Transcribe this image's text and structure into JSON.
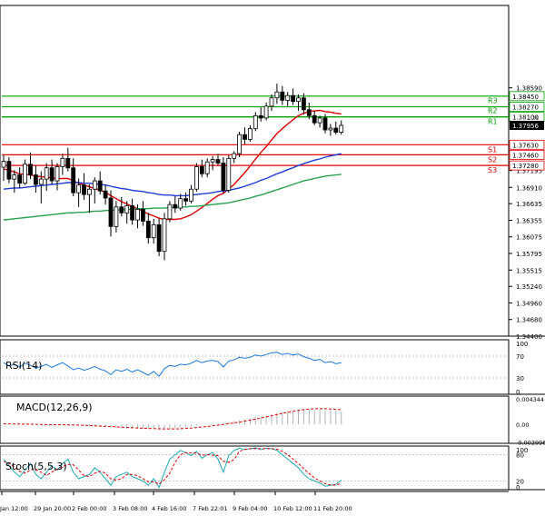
{
  "chart_data": {
    "type": "candlestick",
    "title": "",
    "x_labels": [
      "Jan 12:00",
      "29 Jan 20:00",
      "2 Feb 00:00",
      "3 Feb 08:00",
      "4 Feb 16:00",
      "7 Feb 22:01",
      "9 Feb 04:00",
      "10 Feb 12:00",
      "11 Feb 20:00"
    ],
    "price_axis": {
      "ylim": [
        1.344,
        1.3998
      ],
      "ticks": [
        "1.38590",
        "1.38310",
        "1.37195",
        "1.36910",
        "1.36635",
        "1.36355",
        "1.36075",
        "1.35795",
        "1.35515",
        "1.35240",
        "1.34960",
        "1.34680",
        "1.34400"
      ],
      "tick_values": [
        1.3859,
        1.3831,
        1.37195,
        1.3691,
        1.36635,
        1.36355,
        1.36075,
        1.35795,
        1.35515,
        1.3524,
        1.3496,
        1.3468,
        1.344
      ],
      "current_price": "1.37956",
      "partial_label": "1.38"
    },
    "levels": [
      {
        "name": "R3",
        "value": 1.3827,
        "label": "1.38270",
        "color": "#00a000"
      },
      {
        "name": "R2",
        "value": 1.381,
        "label": "1.38100",
        "color": "#00a000"
      },
      {
        "name": "R1",
        "value": 1.381,
        "label": "",
        "color": "#00a000"
      },
      {
        "name": "S1",
        "value": 1.3763,
        "label": "1.37630",
        "color": "#e00000"
      },
      {
        "name": "S2",
        "value": 1.3746,
        "label": "1.37460",
        "color": "#e00000"
      },
      {
        "name": "S3",
        "value": 1.3728,
        "label": "1.37280",
        "color": "#e00000"
      }
    ],
    "extra_line": {
      "value": 1.3845,
      "label": "1.38450",
      "color": "#00a000"
    },
    "candles": [
      {
        "o": 1.3725,
        "h": 1.3745,
        "l": 1.3702,
        "c": 1.3735
      },
      {
        "o": 1.3735,
        "h": 1.3742,
        "l": 1.3698,
        "c": 1.3705
      },
      {
        "o": 1.3705,
        "h": 1.372,
        "l": 1.3682,
        "c": 1.3712
      },
      {
        "o": 1.3712,
        "h": 1.3725,
        "l": 1.369,
        "c": 1.3698
      },
      {
        "o": 1.3698,
        "h": 1.3738,
        "l": 1.3695,
        "c": 1.373
      },
      {
        "o": 1.373,
        "h": 1.375,
        "l": 1.3705,
        "c": 1.3712
      },
      {
        "o": 1.3712,
        "h": 1.3728,
        "l": 1.3682,
        "c": 1.3696
      },
      {
        "o": 1.3696,
        "h": 1.3718,
        "l": 1.3664,
        "c": 1.3705
      },
      {
        "o": 1.3705,
        "h": 1.3732,
        "l": 1.3685,
        "c": 1.3724
      },
      {
        "o": 1.3724,
        "h": 1.3738,
        "l": 1.3696,
        "c": 1.3702
      },
      {
        "o": 1.3702,
        "h": 1.3732,
        "l": 1.3686,
        "c": 1.3726
      },
      {
        "o": 1.3726,
        "h": 1.3748,
        "l": 1.3712,
        "c": 1.374
      },
      {
        "o": 1.374,
        "h": 1.3758,
        "l": 1.3718,
        "c": 1.3724
      },
      {
        "o": 1.3724,
        "h": 1.374,
        "l": 1.3676,
        "c": 1.3682
      },
      {
        "o": 1.3682,
        "h": 1.3706,
        "l": 1.3658,
        "c": 1.3695
      },
      {
        "o": 1.3695,
        "h": 1.3715,
        "l": 1.367,
        "c": 1.3679
      },
      {
        "o": 1.3679,
        "h": 1.3696,
        "l": 1.3648,
        "c": 1.3688
      },
      {
        "o": 1.3688,
        "h": 1.3708,
        "l": 1.3664,
        "c": 1.3702
      },
      {
        "o": 1.3702,
        "h": 1.3718,
        "l": 1.3679,
        "c": 1.3685
      },
      {
        "o": 1.3685,
        "h": 1.3696,
        "l": 1.3662,
        "c": 1.3673
      },
      {
        "o": 1.3673,
        "h": 1.3686,
        "l": 1.3608,
        "c": 1.3625
      },
      {
        "o": 1.3625,
        "h": 1.3668,
        "l": 1.3615,
        "c": 1.3658
      },
      {
        "o": 1.3658,
        "h": 1.3675,
        "l": 1.3642,
        "c": 1.3648
      },
      {
        "o": 1.3648,
        "h": 1.3668,
        "l": 1.363,
        "c": 1.366
      },
      {
        "o": 1.366,
        "h": 1.3672,
        "l": 1.3628,
        "c": 1.3636
      },
      {
        "o": 1.3636,
        "h": 1.3662,
        "l": 1.3622,
        "c": 1.3654
      },
      {
        "o": 1.3654,
        "h": 1.3668,
        "l": 1.3626,
        "c": 1.3634
      },
      {
        "o": 1.3634,
        "h": 1.3648,
        "l": 1.3596,
        "c": 1.3606
      },
      {
        "o": 1.3606,
        "h": 1.3638,
        "l": 1.3596,
        "c": 1.3628
      },
      {
        "o": 1.3628,
        "h": 1.3638,
        "l": 1.3575,
        "c": 1.3583
      },
      {
        "o": 1.3583,
        "h": 1.3648,
        "l": 1.3568,
        "c": 1.3638
      },
      {
        "o": 1.3638,
        "h": 1.3668,
        "l": 1.3632,
        "c": 1.3662
      },
      {
        "o": 1.3662,
        "h": 1.3676,
        "l": 1.3648,
        "c": 1.3656
      },
      {
        "o": 1.3656,
        "h": 1.368,
        "l": 1.3652,
        "c": 1.3672
      },
      {
        "o": 1.3672,
        "h": 1.3682,
        "l": 1.366,
        "c": 1.3668
      },
      {
        "o": 1.3668,
        "h": 1.3695,
        "l": 1.3664,
        "c": 1.3688
      },
      {
        "o": 1.3688,
        "h": 1.3732,
        "l": 1.3684,
        "c": 1.3726
      },
      {
        "o": 1.3726,
        "h": 1.3738,
        "l": 1.3708,
        "c": 1.3714
      },
      {
        "o": 1.3714,
        "h": 1.374,
        "l": 1.3708,
        "c": 1.3734
      },
      {
        "o": 1.3734,
        "h": 1.3744,
        "l": 1.372,
        "c": 1.3738
      },
      {
        "o": 1.3738,
        "h": 1.3748,
        "l": 1.3728,
        "c": 1.3732
      },
      {
        "o": 1.3732,
        "h": 1.3742,
        "l": 1.368,
        "c": 1.3686
      },
      {
        "o": 1.3686,
        "h": 1.3745,
        "l": 1.3682,
        "c": 1.374
      },
      {
        "o": 1.374,
        "h": 1.3752,
        "l": 1.3732,
        "c": 1.3748
      },
      {
        "o": 1.3748,
        "h": 1.3785,
        "l": 1.3742,
        "c": 1.378
      },
      {
        "o": 1.378,
        "h": 1.3792,
        "l": 1.3764,
        "c": 1.3772
      },
      {
        "o": 1.3772,
        "h": 1.3796,
        "l": 1.3768,
        "c": 1.379
      },
      {
        "o": 1.379,
        "h": 1.3818,
        "l": 1.3786,
        "c": 1.3812
      },
      {
        "o": 1.3812,
        "h": 1.3826,
        "l": 1.3802,
        "c": 1.3808
      },
      {
        "o": 1.3808,
        "h": 1.3834,
        "l": 1.3804,
        "c": 1.3828
      },
      {
        "o": 1.3828,
        "h": 1.3848,
        "l": 1.382,
        "c": 1.3842
      },
      {
        "o": 1.3842,
        "h": 1.3866,
        "l": 1.3832,
        "c": 1.3852
      },
      {
        "o": 1.3852,
        "h": 1.3862,
        "l": 1.383,
        "c": 1.3838
      },
      {
        "o": 1.3838,
        "h": 1.3852,
        "l": 1.3828,
        "c": 1.3846
      },
      {
        "o": 1.3846,
        "h": 1.3858,
        "l": 1.383,
        "c": 1.3836
      },
      {
        "o": 1.3836,
        "h": 1.3848,
        "l": 1.382,
        "c": 1.3842
      },
      {
        "o": 1.3842,
        "h": 1.385,
        "l": 1.3814,
        "c": 1.3822
      },
      {
        "o": 1.3822,
        "h": 1.3834,
        "l": 1.3806,
        "c": 1.3812
      },
      {
        "o": 1.3812,
        "h": 1.382,
        "l": 1.3796,
        "c": 1.38
      },
      {
        "o": 1.38,
        "h": 1.3812,
        "l": 1.3792,
        "c": 1.3808
      },
      {
        "o": 1.3808,
        "h": 1.3815,
        "l": 1.3782,
        "c": 1.3788
      },
      {
        "o": 1.3788,
        "h": 1.3798,
        "l": 1.3778,
        "c": 1.3791
      },
      {
        "o": 1.3791,
        "h": 1.3802,
        "l": 1.378,
        "c": 1.3784
      },
      {
        "o": 1.3784,
        "h": 1.3804,
        "l": 1.378,
        "c": 1.37956
      }
    ],
    "moving_averages": [
      {
        "name": "MA-fast",
        "color": "#e00000",
        "values": [
          1.3722,
          1.372,
          1.3717,
          1.3714,
          1.3713,
          1.3712,
          1.371,
          1.3709,
          1.3708,
          1.3707,
          1.3706,
          1.3706,
          1.3706,
          1.3702,
          1.3698,
          1.3695,
          1.3692,
          1.3689,
          1.3686,
          1.3683,
          1.3677,
          1.3672,
          1.3667,
          1.3663,
          1.3659,
          1.3655,
          1.3651,
          1.3646,
          1.3643,
          1.3639,
          1.3637,
          1.3637,
          1.3637,
          1.3638,
          1.3641,
          1.3645,
          1.3651,
          1.3657,
          1.3664,
          1.3671,
          1.3677,
          1.3681,
          1.3688,
          1.3696,
          1.3706,
          1.3716,
          1.3727,
          1.3739,
          1.375,
          1.376,
          1.3771,
          1.3782,
          1.379,
          1.3798,
          1.3805,
          1.3812,
          1.3816,
          1.3819,
          1.382,
          1.3821,
          1.3819,
          1.3818,
          1.3816,
          1.3815
        ]
      },
      {
        "name": "MA-mid",
        "color": "#1e3cdc",
        "values": [
          1.3688,
          1.3689,
          1.369,
          1.369,
          1.3691,
          1.3692,
          1.3693,
          1.3694,
          1.3695,
          1.3696,
          1.3697,
          1.3698,
          1.3699,
          1.3699,
          1.3699,
          1.3698,
          1.3698,
          1.3697,
          1.3696,
          1.3695,
          1.3693,
          1.3691,
          1.3689,
          1.3688,
          1.3686,
          1.3685,
          1.3684,
          1.3682,
          1.3681,
          1.3679,
          1.3678,
          1.3678,
          1.3677,
          1.3677,
          1.3677,
          1.3678,
          1.3679,
          1.368,
          1.3681,
          1.3682,
          1.3684,
          1.3685,
          1.3686,
          1.3688,
          1.369,
          1.3693,
          1.3696,
          1.3699,
          1.3703,
          1.3706,
          1.371,
          1.3714,
          1.3717,
          1.3721,
          1.3724,
          1.3728,
          1.3731,
          1.3734,
          1.3737,
          1.3739,
          1.3742,
          1.3744,
          1.3746,
          1.3748
        ]
      },
      {
        "name": "MA-slow",
        "color": "#28a050",
        "values": [
          1.3636,
          1.3637,
          1.3638,
          1.3639,
          1.364,
          1.3641,
          1.3642,
          1.3643,
          1.3644,
          1.3645,
          1.3646,
          1.3647,
          1.3648,
          1.3648,
          1.3649,
          1.3649,
          1.365,
          1.3651,
          1.3651,
          1.3652,
          1.3652,
          1.3653,
          1.3653,
          1.3654,
          1.3654,
          1.3655,
          1.3655,
          1.3655,
          1.3656,
          1.3656,
          1.3656,
          1.3657,
          1.3657,
          1.3658,
          1.3658,
          1.3659,
          1.3659,
          1.366,
          1.3661,
          1.3662,
          1.3663,
          1.3664,
          1.3665,
          1.3667,
          1.3669,
          1.3671,
          1.3673,
          1.3676,
          1.3678,
          1.3681,
          1.3684,
          1.3687,
          1.369,
          1.3693,
          1.3696,
          1.3699,
          1.3702,
          1.3704,
          1.3706,
          1.3708,
          1.371,
          1.3711,
          1.3712,
          1.3713
        ]
      }
    ],
    "indicators": {
      "rsi": {
        "label": "RSI(14)",
        "ylim": [
          0,
          100
        ],
        "ticks": [
          "100",
          "70",
          "30",
          "0"
        ],
        "tick_values": [
          100,
          70,
          30,
          0
        ],
        "color": "#1e78dc",
        "values": [
          58,
          52,
          55,
          50,
          57,
          53,
          48,
          51,
          55,
          49,
          54,
          58,
          52,
          45,
          48,
          44,
          47,
          51,
          46,
          43,
          36,
          45,
          42,
          46,
          41,
          45,
          40,
          35,
          42,
          33,
          47,
          53,
          51,
          55,
          54,
          57,
          62,
          58,
          61,
          62,
          60,
          50,
          61,
          63,
          68,
          66,
          68,
          72,
          70,
          73,
          76,
          77,
          73,
          75,
          72,
          74,
          69,
          66,
          62,
          64,
          58,
          60,
          56,
          58
        ]
      },
      "macd": {
        "label": "MACD(12,26,9)",
        "ylim": [
          -0.0032,
          0.0048
        ],
        "ticks": [
          "0.004344",
          "0.00",
          "-0.002996"
        ],
        "tick_values": [
          0.004344,
          0.0,
          -0.002996
        ],
        "histogram_color": "#b4b4b4",
        "signal_color": "#e00000",
        "histogram": [
          0.0002,
          0.00015,
          0.0001,
          5e-05,
          6e-05,
          5e-05,
          0.0,
          -3e-05,
          -2e-05,
          -5e-05,
          -4e-05,
          -2e-05,
          -3e-05,
          -0.0001,
          -0.00018,
          -0.00024,
          -0.0003,
          -0.00032,
          -0.00036,
          -0.0004,
          -0.0005,
          -0.00055,
          -0.0006,
          -0.00064,
          -0.00068,
          -0.0007,
          -0.00072,
          -0.00078,
          -0.0008,
          -0.00085,
          -0.00082,
          -0.00074,
          -0.00066,
          -0.00056,
          -0.00046,
          -0.00034,
          -0.0002,
          -0.0001,
          2e-05,
          0.00014,
          0.00024,
          0.0003,
          0.00042,
          0.00056,
          0.00072,
          0.00088,
          0.00104,
          0.00122,
          0.0014,
          0.00158,
          0.00178,
          0.00198,
          0.00212,
          0.00226,
          0.00236,
          0.00246,
          0.0025,
          0.00252,
          0.00252,
          0.0025,
          0.00244,
          0.00238,
          0.0023,
          0.00224
        ],
        "signal": [
          0.0001,
          0.0001,
          8e-05,
          6e-05,
          5e-05,
          4e-05,
          2e-05,
          0.0,
          -2e-05,
          -4e-05,
          -5e-05,
          -6e-05,
          -7e-05,
          -9e-05,
          -0.00012,
          -0.00016,
          -0.0002,
          -0.00024,
          -0.00028,
          -0.00032,
          -0.00037,
          -0.00042,
          -0.00047,
          -0.00052,
          -0.00056,
          -0.0006,
          -0.00064,
          -0.00068,
          -0.00071,
          -0.00074,
          -0.00076,
          -0.00076,
          -0.00075,
          -0.00072,
          -0.00067,
          -0.00061,
          -0.00053,
          -0.00044,
          -0.00034,
          -0.00023,
          -0.00012,
          0.0,
          0.00012,
          0.00026,
          0.0004,
          0.00056,
          0.00072,
          0.0009,
          0.00108,
          0.00126,
          0.00146,
          0.00166,
          0.00186,
          0.00204,
          0.00222,
          0.00238,
          0.0025,
          0.0026,
          0.00266,
          0.00268,
          0.00266,
          0.00262,
          0.00256,
          0.0025
        ]
      },
      "stochastic": {
        "label": "Stoch(5,5,3)",
        "ylim": [
          0,
          100
        ],
        "ticks": [
          "100",
          "80",
          "20",
          "0"
        ],
        "tick_values": [
          100,
          80,
          20,
          0
        ],
        "k_color": "#1eaab4",
        "d_color": "#e00000",
        "k": [
          70,
          55,
          40,
          30,
          45,
          60,
          35,
          25,
          40,
          55,
          45,
          60,
          70,
          40,
          25,
          30,
          35,
          50,
          40,
          25,
          10,
          30,
          35,
          40,
          30,
          25,
          20,
          10,
          25,
          5,
          40,
          70,
          80,
          90,
          85,
          78,
          88,
          72,
          80,
          85,
          70,
          40,
          78,
          90,
          95,
          92,
          94,
          96,
          92,
          95,
          94,
          90,
          80,
          70,
          60,
          50,
          35,
          25,
          20,
          15,
          8,
          10,
          12,
          22
        ],
        "d": [
          65,
          60,
          52,
          42,
          38,
          45,
          47,
          40,
          33,
          40,
          47,
          53,
          58,
          57,
          45,
          32,
          30,
          38,
          42,
          38,
          25,
          22,
          25,
          35,
          35,
          32,
          25,
          18,
          18,
          13,
          23,
          38,
          63,
          80,
          85,
          84,
          84,
          79,
          80,
          79,
          78,
          65,
          63,
          69,
          88,
          92,
          94,
          94,
          94,
          94,
          94,
          93,
          88,
          80,
          70,
          60,
          48,
          37,
          27,
          20,
          14,
          11,
          10,
          15
        ]
      }
    }
  }
}
